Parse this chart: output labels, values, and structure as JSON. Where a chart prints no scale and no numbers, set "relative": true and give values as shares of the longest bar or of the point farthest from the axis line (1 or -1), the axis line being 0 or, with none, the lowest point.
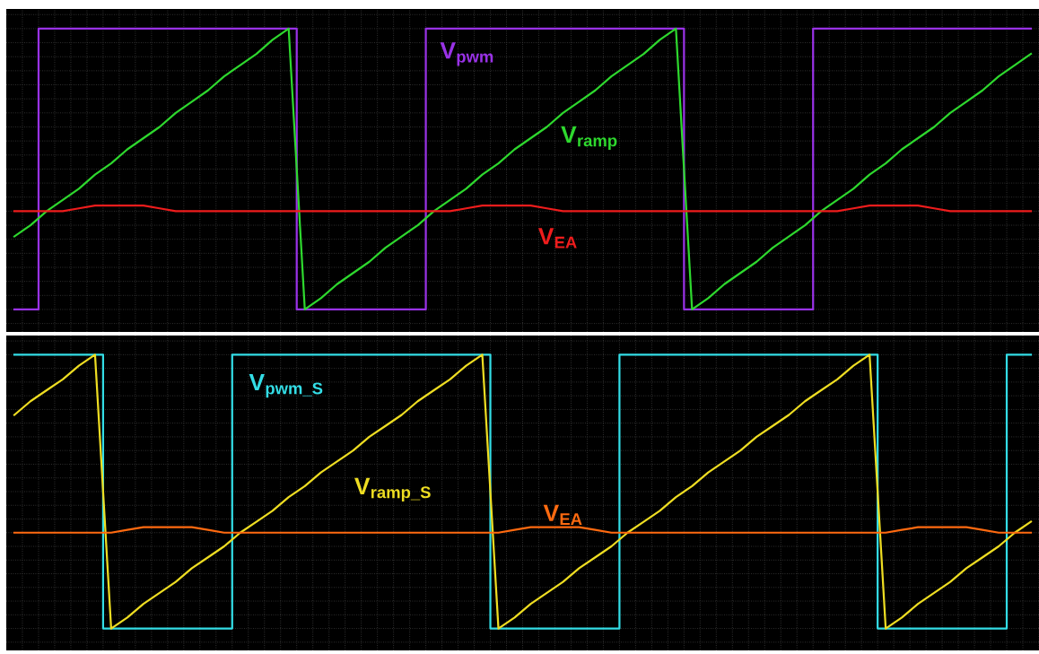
{
  "chart_data": [
    {
      "type": "line",
      "relative": true,
      "grid": true,
      "legend": false,
      "categories": [
        null,
        null,
        null,
        null,
        null,
        null,
        null,
        null,
        null,
        null,
        null,
        null,
        null,
        null,
        null,
        null,
        null,
        null,
        null,
        null,
        null,
        null,
        null,
        null,
        null,
        null,
        null,
        null,
        null,
        null,
        null,
        null,
        null,
        null,
        null,
        null,
        null,
        null,
        null,
        null,
        null,
        null,
        null,
        null,
        null,
        null,
        null,
        null,
        null,
        null,
        null,
        null,
        null,
        null,
        null,
        null,
        null,
        null,
        null,
        null,
        null,
        null,
        null,
        null
      ],
      "series": [
        {
          "name": "V$_{pwm}$",
          "type": "step",
          "color": "#9932e6",
          "values": [
            0,
            0,
            1,
            1,
            1,
            1,
            1,
            1,
            1,
            1,
            1,
            1,
            1,
            1,
            1,
            1,
            1,
            1,
            0,
            0,
            0,
            0,
            0,
            0,
            0,
            0,
            1,
            1,
            1,
            1,
            1,
            1,
            1,
            1,
            1,
            1,
            1,
            1,
            1,
            1,
            1,
            1,
            0,
            0,
            0,
            0,
            0,
            0,
            0,
            0,
            1,
            1,
            1,
            1,
            1,
            1,
            1,
            1,
            1,
            1,
            1,
            1,
            1,
            1
          ]
        },
        {
          "name": "V$_{ramp}$",
          "type": "line",
          "color": "#2ed82e",
          "values": [
            0.26,
            0.3,
            0.35,
            0.39,
            0.43,
            0.48,
            0.52,
            0.57,
            0.61,
            0.65,
            0.7,
            0.74,
            0.78,
            0.83,
            0.87,
            0.91,
            0.96,
            1,
            0,
            0.04,
            0.09,
            0.13,
            0.17,
            0.22,
            0.26,
            0.3,
            0.35,
            0.39,
            0.43,
            0.48,
            0.52,
            0.57,
            0.61,
            0.65,
            0.7,
            0.74,
            0.78,
            0.83,
            0.87,
            0.91,
            0.96,
            1,
            0,
            0.04,
            0.09,
            0.13,
            0.17,
            0.22,
            0.26,
            0.3,
            0.35,
            0.39,
            0.43,
            0.48,
            0.52,
            0.57,
            0.61,
            0.65,
            0.7,
            0.74,
            0.78,
            0.83,
            0.87,
            0.91
          ]
        },
        {
          "name": "V$_{EA}$",
          "type": "line",
          "color": "#ee1c1c",
          "values": [
            0.35,
            0.35,
            0.35,
            0.35,
            0.36,
            0.37,
            0.37,
            0.37,
            0.37,
            0.36,
            0.35,
            0.35,
            0.35,
            0.35,
            0.35,
            0.35,
            0.35,
            0.35,
            0.35,
            0.35,
            0.35,
            0.35,
            0.35,
            0.35,
            0.35,
            0.35,
            0.35,
            0.35,
            0.36,
            0.37,
            0.37,
            0.37,
            0.37,
            0.36,
            0.35,
            0.35,
            0.35,
            0.35,
            0.35,
            0.35,
            0.35,
            0.35,
            0.35,
            0.35,
            0.35,
            0.35,
            0.35,
            0.35,
            0.35,
            0.35,
            0.35,
            0.35,
            0.36,
            0.37,
            0.37,
            0.37,
            0.37,
            0.36,
            0.35,
            0.35,
            0.35,
            0.35,
            0.35,
            0.35
          ]
        }
      ]
    },
    {
      "type": "line",
      "relative": true,
      "grid": true,
      "legend": false,
      "categories": [
        null,
        null,
        null,
        null,
        null,
        null,
        null,
        null,
        null,
        null,
        null,
        null,
        null,
        null,
        null,
        null,
        null,
        null,
        null,
        null,
        null,
        null,
        null,
        null,
        null,
        null,
        null,
        null,
        null,
        null,
        null,
        null,
        null,
        null,
        null,
        null,
        null,
        null,
        null,
        null,
        null,
        null,
        null,
        null,
        null,
        null,
        null,
        null,
        null,
        null,
        null,
        null,
        null,
        null,
        null,
        null,
        null,
        null,
        null,
        null,
        null,
        null,
        null,
        null
      ],
      "series": [
        {
          "name": "V$_{pwm_S}$",
          "type": "step",
          "color": "#33dde6",
          "values": [
            1,
            1,
            1,
            1,
            1,
            1,
            0,
            0,
            0,
            0,
            0,
            0,
            0,
            0,
            1,
            1,
            1,
            1,
            1,
            1,
            1,
            1,
            1,
            1,
            1,
            1,
            1,
            1,
            1,
            1,
            0,
            0,
            0,
            0,
            0,
            0,
            0,
            0,
            1,
            1,
            1,
            1,
            1,
            1,
            1,
            1,
            1,
            1,
            1,
            1,
            1,
            1,
            1,
            1,
            0,
            0,
            0,
            0,
            0,
            0,
            0,
            0,
            1,
            1
          ]
        },
        {
          "name": "V$_{ramp_S}$",
          "type": "line",
          "color": "#eedd22",
          "values": [
            0.78,
            0.83,
            0.87,
            0.91,
            0.96,
            1,
            0,
            0.04,
            0.09,
            0.13,
            0.17,
            0.22,
            0.26,
            0.3,
            0.35,
            0.39,
            0.43,
            0.48,
            0.52,
            0.57,
            0.61,
            0.65,
            0.7,
            0.74,
            0.78,
            0.83,
            0.87,
            0.91,
            0.96,
            1,
            0,
            0.04,
            0.09,
            0.13,
            0.17,
            0.22,
            0.26,
            0.3,
            0.35,
            0.39,
            0.43,
            0.48,
            0.52,
            0.57,
            0.61,
            0.65,
            0.7,
            0.74,
            0.78,
            0.83,
            0.87,
            0.91,
            0.96,
            1,
            0,
            0.04,
            0.09,
            0.13,
            0.17,
            0.22,
            0.26,
            0.3,
            0.35,
            0.39
          ]
        },
        {
          "name": "V$_{EA}$",
          "type": "line",
          "color": "#ff6a10",
          "values": [
            0.35,
            0.35,
            0.35,
            0.35,
            0.35,
            0.35,
            0.35,
            0.36,
            0.37,
            0.37,
            0.37,
            0.37,
            0.36,
            0.35,
            0.35,
            0.35,
            0.35,
            0.35,
            0.35,
            0.35,
            0.35,
            0.35,
            0.35,
            0.35,
            0.35,
            0.35,
            0.35,
            0.35,
            0.35,
            0.35,
            0.35,
            0.36,
            0.37,
            0.37,
            0.37,
            0.37,
            0.36,
            0.35,
            0.35,
            0.35,
            0.35,
            0.35,
            0.35,
            0.35,
            0.35,
            0.35,
            0.35,
            0.35,
            0.35,
            0.35,
            0.35,
            0.35,
            0.35,
            0.35,
            0.35,
            0.36,
            0.37,
            0.37,
            0.37,
            0.37,
            0.36,
            0.35,
            0.35,
            0.35
          ]
        }
      ]
    }
  ]
}
